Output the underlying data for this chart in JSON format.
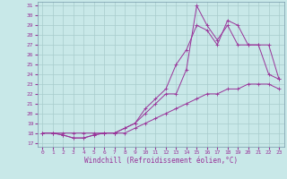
{
  "xlabel": "Windchill (Refroidissement éolien,°C)",
  "xlim": [
    -0.5,
    23.5
  ],
  "ylim": [
    16.6,
    31.4
  ],
  "yticks": [
    17,
    18,
    19,
    20,
    21,
    22,
    23,
    24,
    25,
    26,
    27,
    28,
    29,
    30,
    31
  ],
  "xticks": [
    0,
    1,
    2,
    3,
    4,
    5,
    6,
    7,
    8,
    9,
    10,
    11,
    12,
    13,
    14,
    15,
    16,
    17,
    18,
    19,
    20,
    21,
    22,
    23
  ],
  "bg_color": "#c8e8e8",
  "grid_color": "#a8cccc",
  "line_color": "#993399",
  "line1_x": [
    0,
    1,
    2,
    3,
    4,
    5,
    6,
    7,
    8,
    9,
    10,
    11,
    12,
    13,
    14,
    15,
    16,
    17,
    18,
    19,
    20,
    21,
    22,
    23
  ],
  "line1_y": [
    18.0,
    18.0,
    18.0,
    18.0,
    18.0,
    18.0,
    18.0,
    18.0,
    18.0,
    18.5,
    19.0,
    19.5,
    20.0,
    20.5,
    21.0,
    21.5,
    22.0,
    22.0,
    22.5,
    22.5,
    23.0,
    23.0,
    23.0,
    22.5
  ],
  "line2_x": [
    0,
    1,
    2,
    3,
    4,
    5,
    6,
    7,
    8,
    9,
    10,
    11,
    12,
    13,
    14,
    15,
    16,
    17,
    18,
    19,
    20,
    21,
    22,
    23
  ],
  "line2_y": [
    18.0,
    18.0,
    17.8,
    17.5,
    17.5,
    17.8,
    18.0,
    18.0,
    18.5,
    19.0,
    20.5,
    21.5,
    22.5,
    25.0,
    26.5,
    29.0,
    28.5,
    27.0,
    29.5,
    29.0,
    27.0,
    27.0,
    27.0,
    23.5
  ],
  "line3_x": [
    0,
    1,
    2,
    3,
    4,
    5,
    6,
    7,
    8,
    9,
    10,
    11,
    12,
    13,
    14,
    15,
    16,
    17,
    18,
    19,
    20,
    21,
    22,
    23
  ],
  "line3_y": [
    18.0,
    18.0,
    17.8,
    17.5,
    17.5,
    17.8,
    18.0,
    18.0,
    18.5,
    19.0,
    20.0,
    21.0,
    22.0,
    22.0,
    24.5,
    31.0,
    29.0,
    27.5,
    29.0,
    27.0,
    27.0,
    27.0,
    24.0,
    23.5
  ],
  "tick_fontsize": 4.5,
  "xlabel_fontsize": 5.5
}
